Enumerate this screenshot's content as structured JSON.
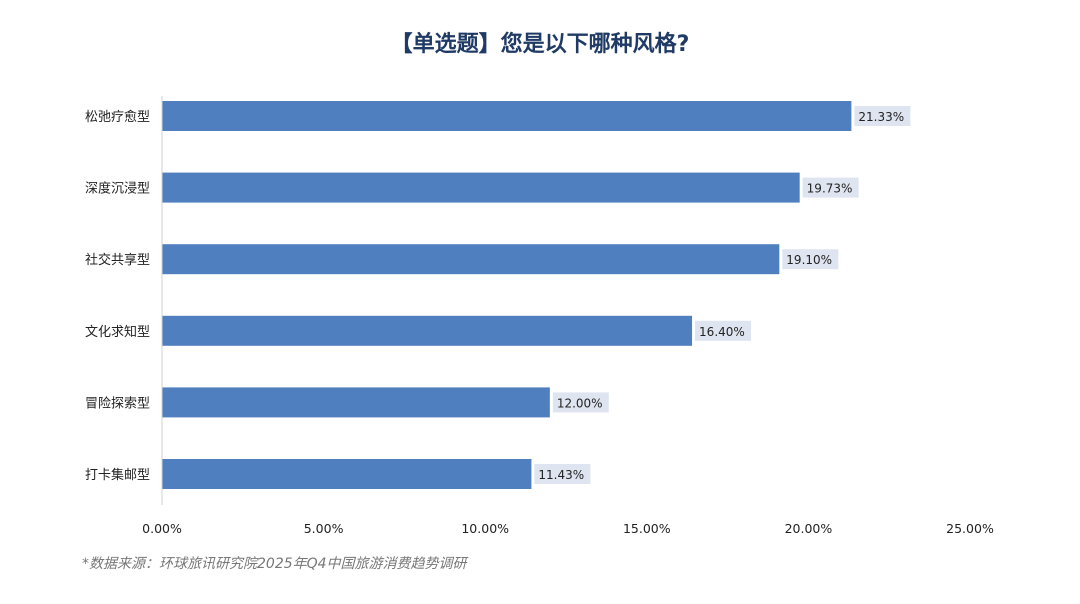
{
  "chart_data": {
    "type": "bar",
    "orientation": "horizontal",
    "title": "【单选题】您是以下哪种风格?",
    "categories": [
      "松弛疗愈型",
      "深度沉浸型",
      "社交共享型",
      "文化求知型",
      "冒险探索型",
      "打卡集邮型"
    ],
    "values": [
      21.33,
      19.73,
      19.1,
      16.4,
      12.0,
      11.43
    ],
    "data_labels": [
      "21.33%",
      "19.73%",
      "19.10%",
      "16.40%",
      "12.00%",
      "11.43%"
    ],
    "xlim": [
      0,
      25
    ],
    "xticks": [
      0,
      5,
      10,
      15,
      20,
      25
    ],
    "xtick_labels": [
      "0.00%",
      "5.00%",
      "10.00%",
      "15.00%",
      "20.00%",
      "25.00%"
    ],
    "xlabel": "",
    "ylabel": "",
    "grid": false,
    "bar_color": "#4f7fbf",
    "label_bg_color": "#dfe5f0"
  },
  "source": "*数据来源：环球旅讯研究院2025年Q4中国旅游消费趋势调研"
}
